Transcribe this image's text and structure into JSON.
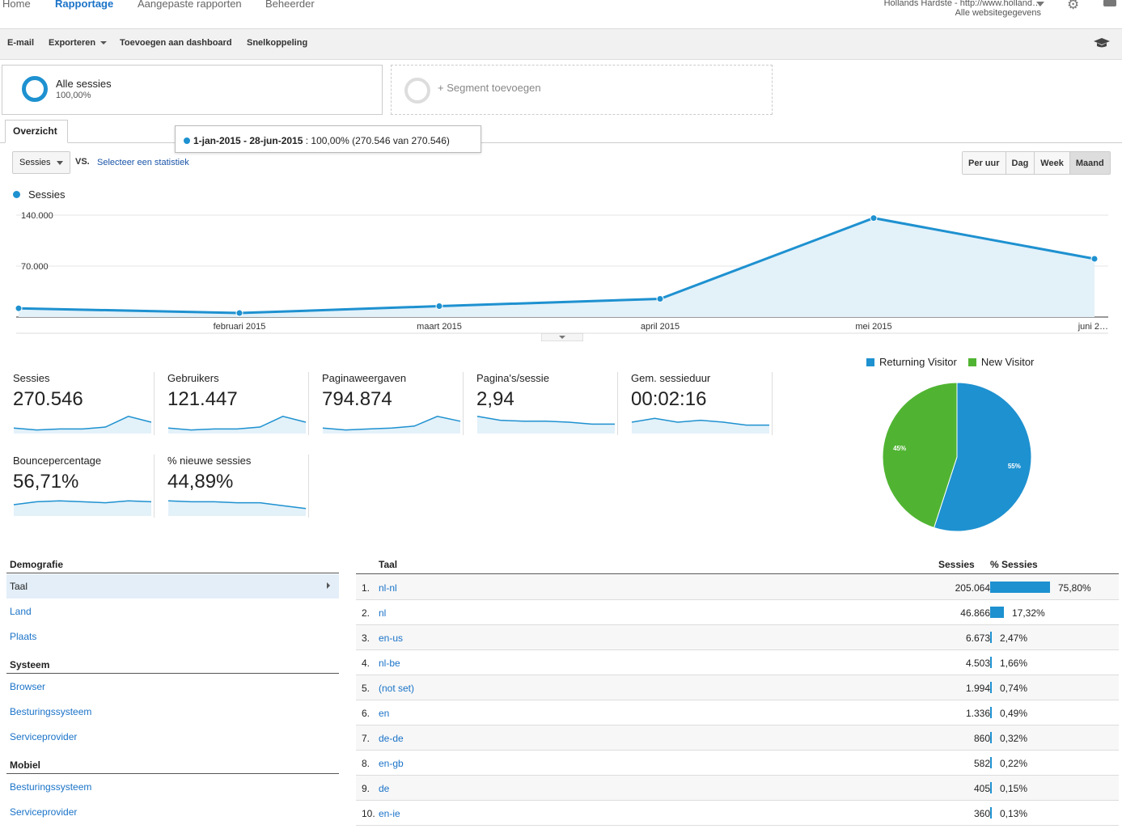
{
  "nav": {
    "tabs": [
      "Home",
      "Rapportage",
      "Aangepaste rapporten",
      "Beheerder"
    ],
    "active_tab": "Rapportage",
    "account_line1": "Hollands Hardste - http://www.holland…",
    "account_line2": "Alle websitegegevens"
  },
  "actions": {
    "email": "E-mail",
    "export": "Exporteren",
    "add_dashboard": "Toevoegen aan dashboard",
    "shortcut": "Snelkoppeling"
  },
  "segments": {
    "active_name": "Alle sessies",
    "active_pct": "100,00%",
    "add_label": "+ Segment toevoegen"
  },
  "tab_overview": "Overzicht",
  "tooltip": {
    "range": "1-jan-2015 - 28-jun-2015",
    "detail": " : 100,00% (270.546 van 270.546)"
  },
  "controls": {
    "metric": "Sessies",
    "vs": "VS.",
    "select_stat": "Selecteer een statistiek",
    "granularity": [
      "Per uur",
      "Dag",
      "Week",
      "Maand"
    ],
    "selected_granularity": "Maand"
  },
  "chart_data": {
    "type": "area",
    "series": [
      {
        "name": "Sessies",
        "values": [
          12000,
          5500,
          15000,
          25000,
          136000,
          80000
        ]
      }
    ],
    "x_labels": [
      "",
      "februari 2015",
      "maart 2015",
      "april 2015",
      "mei 2015",
      "juni 2…"
    ],
    "y_ticks": [
      "140.000",
      "70.000"
    ],
    "ylim": [
      0,
      140000
    ],
    "color": "#1e91d0"
  },
  "scorecards": [
    {
      "label": "Sessies",
      "value": "270.546",
      "spark": [
        0.2,
        0.1,
        0.15,
        0.15,
        0.25,
        0.8,
        0.5
      ]
    },
    {
      "label": "Gebruikers",
      "value": "121.447",
      "spark": [
        0.2,
        0.1,
        0.15,
        0.15,
        0.25,
        0.8,
        0.5
      ]
    },
    {
      "label": "Paginaweergaven",
      "value": "794.874",
      "spark": [
        0.2,
        0.1,
        0.15,
        0.2,
        0.3,
        0.8,
        0.55
      ]
    },
    {
      "label": "Pagina's/sessie",
      "value": "2,94",
      "spark": [
        0.8,
        0.6,
        0.55,
        0.55,
        0.5,
        0.4,
        0.4
      ]
    },
    {
      "label": "Gem. sessieduur",
      "value": "00:02:16",
      "spark": [
        0.5,
        0.7,
        0.5,
        0.6,
        0.5,
        0.35,
        0.35
      ]
    },
    {
      "label": "Bouncepercentage",
      "value": "56,71%",
      "spark": [
        0.5,
        0.65,
        0.7,
        0.65,
        0.6,
        0.7,
        0.65
      ]
    },
    {
      "label": "% nieuwe sessies",
      "value": "44,89%",
      "spark": [
        0.7,
        0.65,
        0.65,
        0.6,
        0.6,
        0.45,
        0.3
      ]
    }
  ],
  "pie": {
    "legend": [
      "Returning Visitor",
      "New Visitor"
    ],
    "slices": [
      {
        "name": "Returning Visitor",
        "value": 55,
        "label": "55%",
        "color": "#1e91d0"
      },
      {
        "name": "New Visitor",
        "value": 45,
        "label": "45%",
        "color": "#50b432"
      }
    ]
  },
  "sidebar": {
    "demografie": "Demografie",
    "demo_items": [
      "Taal",
      "Land",
      "Plaats"
    ],
    "systeem": "Systeem",
    "systeem_items": [
      "Browser",
      "Besturingssysteem",
      "Serviceprovider"
    ],
    "mobiel": "Mobiel",
    "mobiel_items": [
      "Besturingssysteem",
      "Serviceprovider"
    ]
  },
  "table": {
    "col_lang": "Taal",
    "col_sessions": "Sessies",
    "col_pct": "% Sessies",
    "rows": [
      {
        "idx": "1.",
        "lang": "nl-nl",
        "sessions": "205.064",
        "pct": "75,80%",
        "share": 75.8
      },
      {
        "idx": "2.",
        "lang": "nl",
        "sessions": "46.866",
        "pct": "17,32%",
        "share": 17.32
      },
      {
        "idx": "3.",
        "lang": "en-us",
        "sessions": "6.673",
        "pct": "2,47%",
        "share": 2.47
      },
      {
        "idx": "4.",
        "lang": "nl-be",
        "sessions": "4.503",
        "pct": "1,66%",
        "share": 1.66
      },
      {
        "idx": "5.",
        "lang": "(not set)",
        "sessions": "1.994",
        "pct": "0,74%",
        "share": 0.74
      },
      {
        "idx": "6.",
        "lang": "en",
        "sessions": "1.336",
        "pct": "0,49%",
        "share": 0.49
      },
      {
        "idx": "7.",
        "lang": "de-de",
        "sessions": "860",
        "pct": "0,32%",
        "share": 0.32
      },
      {
        "idx": "8.",
        "lang": "en-gb",
        "sessions": "582",
        "pct": "0,22%",
        "share": 0.22
      },
      {
        "idx": "9.",
        "lang": "de",
        "sessions": "405",
        "pct": "0,15%",
        "share": 0.15
      },
      {
        "idx": "10.",
        "lang": "en-ie",
        "sessions": "360",
        "pct": "0,13%",
        "share": 0.13
      }
    ]
  }
}
